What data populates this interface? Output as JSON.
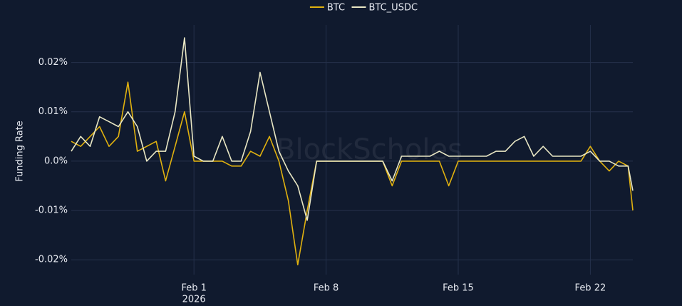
{
  "chart_data": {
    "type": "line",
    "y_label": "Funding Rate",
    "watermark": "BlockScholes",
    "x_sublabel": "2026",
    "x": [
      "2026-01-25T12:00",
      "2026-01-26T00:00",
      "2026-01-26T12:00",
      "2026-01-27T00:00",
      "2026-01-27T12:00",
      "2026-01-28T00:00",
      "2026-01-28T12:00",
      "2026-01-29T00:00",
      "2026-01-29T12:00",
      "2026-01-30T00:00",
      "2026-01-30T12:00",
      "2026-01-31T00:00",
      "2026-01-31T12:00",
      "2026-02-01T00:00",
      "2026-02-01T12:00",
      "2026-02-02T00:00",
      "2026-02-02T12:00",
      "2026-02-03T00:00",
      "2026-02-03T12:00",
      "2026-02-04T00:00",
      "2026-02-04T12:00",
      "2026-02-05T00:00",
      "2026-02-05T12:00",
      "2026-02-06T00:00",
      "2026-02-06T12:00",
      "2026-02-07T00:00",
      "2026-02-07T12:00",
      "2026-02-08T00:00",
      "2026-02-08T12:00",
      "2026-02-09T00:00",
      "2026-02-09T12:00",
      "2026-02-10T00:00",
      "2026-02-10T12:00",
      "2026-02-11T00:00",
      "2026-02-11T12:00",
      "2026-02-12T00:00",
      "2026-02-12T12:00",
      "2026-02-13T00:00",
      "2026-02-13T12:00",
      "2026-02-14T00:00",
      "2026-02-14T12:00",
      "2026-02-15T00:00",
      "2026-02-15T12:00",
      "2026-02-16T00:00",
      "2026-02-16T12:00",
      "2026-02-17T00:00",
      "2026-02-17T12:00",
      "2026-02-18T00:00",
      "2026-02-18T12:00",
      "2026-02-19T00:00",
      "2026-02-19T12:00",
      "2026-02-20T00:00",
      "2026-02-20T12:00",
      "2026-02-21T00:00",
      "2026-02-21T12:00",
      "2026-02-22T00:00",
      "2026-02-22T12:00",
      "2026-02-23T00:00",
      "2026-02-23T12:00",
      "2026-02-24T00:00",
      "2026-02-24T06:00"
    ],
    "series": [
      {
        "name": "BTC",
        "color": "#e0b10f",
        "values": [
          0.004,
          0.003,
          0.005,
          0.007,
          0.003,
          0.005,
          0.016,
          0.002,
          0.003,
          0.004,
          -0.004,
          0.003,
          0.01,
          0,
          0,
          0,
          0,
          -0.001,
          -0.001,
          0.002,
          0.001,
          0.005,
          0,
          -0.008,
          -0.021,
          -0.01,
          0,
          0,
          0,
          0,
          0,
          0,
          0,
          0,
          -0.005,
          0,
          0,
          0,
          0,
          0,
          -0.005,
          0,
          0,
          0,
          0,
          0,
          0,
          0,
          0,
          0,
          0,
          0,
          0,
          0,
          0,
          0.003,
          0,
          -0.002,
          0,
          -0.001,
          -0.01
        ]
      },
      {
        "name": "BTC_USDC",
        "color": "#e9e7c4",
        "values": [
          0.002,
          0.005,
          0.003,
          0.009,
          0.008,
          0.007,
          0.01,
          0.007,
          0,
          0.002,
          0.002,
          0.01,
          0.025,
          0.001,
          0,
          0,
          0.005,
          0,
          0,
          0.006,
          0.018,
          0.01,
          0.002,
          -0.002,
          -0.005,
          -0.012,
          0,
          0,
          0,
          0,
          0,
          0,
          0,
          0,
          -0.004,
          0.001,
          0.001,
          0.001,
          0.001,
          0.002,
          0.001,
          0.001,
          0.001,
          0.001,
          0.001,
          0.002,
          0.002,
          0.004,
          0.005,
          0.001,
          0.003,
          0.001,
          0.001,
          0.001,
          0.001,
          0.002,
          0,
          0,
          -0.001,
          -0.001,
          -0.006
        ]
      }
    ],
    "xlim": [
      "2026-01-25T12:00",
      "2026-02-24T06:00"
    ],
    "xticks": [
      {
        "value": "2026-02-01T00:00",
        "label": "Feb 1"
      },
      {
        "value": "2026-02-08T00:00",
        "label": "Feb 8"
      },
      {
        "value": "2026-02-15T00:00",
        "label": "Feb 15"
      },
      {
        "value": "2026-02-22T00:00",
        "label": "Feb 22"
      }
    ],
    "ylim": [
      -0.023,
      0.0276
    ],
    "yticks": [
      {
        "value": -0.02,
        "label": "-0.02%"
      },
      {
        "value": -0.01,
        "label": "-0.01%"
      },
      {
        "value": 0,
        "label": "0.0%"
      },
      {
        "value": 0.01,
        "label": "0.01%"
      },
      {
        "value": 0.02,
        "label": "0.02%"
      }
    ],
    "grid": true,
    "legend": "top"
  }
}
